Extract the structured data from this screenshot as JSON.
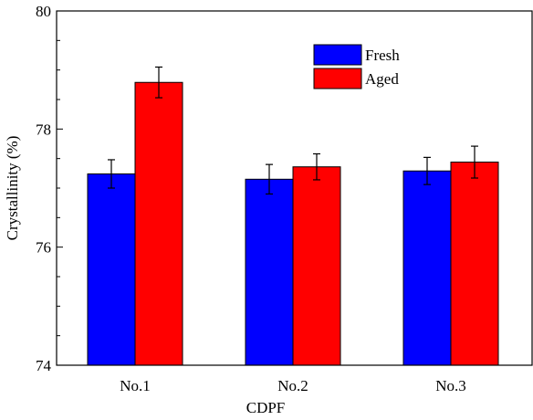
{
  "chart_data": {
    "type": "bar",
    "xlabel": "CDPF",
    "ylabel": "Crystallinity (%)",
    "ylim": [
      74,
      80
    ],
    "yticks": [
      "74",
      "76",
      "78",
      "80"
    ],
    "categories": [
      "No.1",
      "No.2",
      "No.3"
    ],
    "series": [
      {
        "name": "Fresh",
        "color": "#0000ff",
        "values": [
          77.24,
          77.15,
          77.29
        ],
        "errors": [
          0.24,
          0.25,
          0.23
        ]
      },
      {
        "name": "Aged",
        "color": "#ff0000",
        "values": [
          78.79,
          77.36,
          77.44
        ],
        "errors": [
          0.26,
          0.22,
          0.27
        ]
      }
    ],
    "legend_position": "top-right",
    "grid": false
  }
}
